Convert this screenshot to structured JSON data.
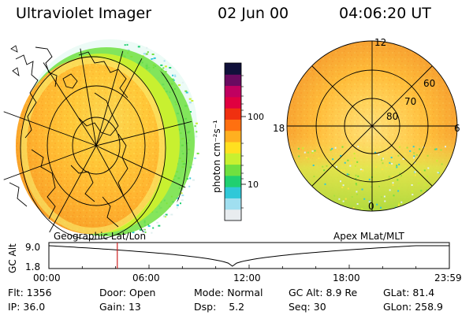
{
  "header": {
    "instrument": "Ultraviolet Imager",
    "date": "02 Jun 00",
    "time": "04:06:20 UT"
  },
  "left_panel": {
    "label": "Geographic Lat/Lon"
  },
  "right_panel": {
    "label": "Apex MLat/MLT",
    "mlt_labels": [
      "12",
      "18",
      "6",
      "0"
    ],
    "mlat_labels": [
      "60",
      "70",
      "80"
    ]
  },
  "colorbar": {
    "unit_label": "photon cm⁻²s⁻¹",
    "ticks": [
      "100",
      "10"
    ],
    "colors": [
      "#e8ecef",
      "#a0dff0",
      "#30c8d8",
      "#20d070",
      "#70e040",
      "#c8f030",
      "#ffe020",
      "#ffb020",
      "#ff7010",
      "#f03010",
      "#e00040",
      "#c00060",
      "#6a0a60",
      "#10103a"
    ]
  },
  "altitude_plot": {
    "axis_title": "GC Alt",
    "y_ticks": [
      "9.0",
      "1.8"
    ],
    "x_ticks": [
      "00:00",
      "06:00",
      "12:00",
      "18:00",
      "23:59"
    ],
    "marker_time_hours": 4.1,
    "marker_color": "#cc2222"
  },
  "info": {
    "row1": [
      {
        "label": "Flt:",
        "value": "1356"
      },
      {
        "label": "Door:",
        "value": "Open"
      },
      {
        "label": "Mode:",
        "value": "Normal"
      },
      {
        "label": "GC Alt:",
        "value": "8.9 Re"
      },
      {
        "label": "GLat:",
        "value": "81.4"
      }
    ],
    "row2": [
      {
        "label": "IP:",
        "value": "36.0"
      },
      {
        "label": "Gain:",
        "value": "13"
      },
      {
        "label": "Dsp:",
        "value": "5.2"
      },
      {
        "label": "Seq:",
        "value": "30"
      },
      {
        "label": "GLon:",
        "value": "258.9"
      }
    ]
  }
}
